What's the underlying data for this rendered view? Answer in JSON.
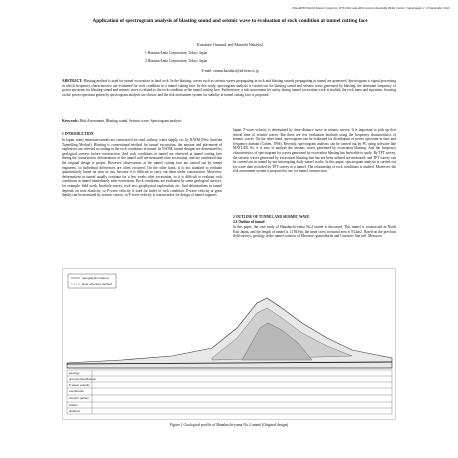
{
  "header": {
    "running": "ITA-AITES World Tunnel Congress, WTC2022 and 46th General Assembly Bella Center, Copenhagen 2 - 8 September 2022",
    "title": "Application of spectrogram analysis of blasting sound and seismic wave to evaluation of rock condition at tunnel cutting face",
    "authors": "Kazuhiro Onuma1 and Masashi Nakaya2",
    "affiliations": [
      "1 Hazama Ando Corporation, Tokyo, Japan",
      "2 Hazama Ando Corporation, Tokyo, Japan"
    ],
    "email": "E-mail: onuma.kazuhiro@ad-hzm.co.jp"
  },
  "abstract": {
    "label": "ABSTRACT:",
    "text": "Blasting method is used for tunnel excavation in hard rock. In the blasting, waves such as seismic waves propagating in rock and blasting sounds propagating in tunnel are generated. Spectrogram is signal processing in which frequency characteristics are evaluated for rock condition in a tunnel cutting face. In this study, spectrogram analysis is carried out for blasting sound and seismic wave generated by blasting, the dominant frequency of power spectrum for blasting sound and seismic wave is related to the rock condition at the tunnel cutting face. Furthermore, a risk assessment for safety during tunnel excavation work is studied, the rock mass and equations focusing on the power spectrum gotten by spectrogram analysis are shown, and the risk assessment system for stability at tunnel cutting face is proposed."
  },
  "keywords": {
    "label": "Keywords:",
    "text": "Risk Assessment, Blasting sound, Seismic wave, Spectrogram analysis"
  },
  "sections": [
    {
      "heading": "1 INTRODUCTION",
      "text": "In Japan, many mountain tunnels are constructed for road, railway, water supply, etc. by NATM (New Austrian Tunnelling Method). Blasting is conventional method for tunnel excavation, the amount and placement of explosives are selected according to the rock conditions in tunnel. In NATM, tunnel designs are determined by geological surveys before construction. And rock conditions in tunnel are observed at tunnel cutting face during the construction, deformations of the tunnel wall are measured after excavation, and are confirmed that the original design is proper. However, observations at the tunnel cutting face are carried out by tunnel engineers, so individual differences are often occurred. On the other hand, it is not standard to evaluate quantitatively based on tests in situ, because it is difficult to carry out them under construction. Moreover, deformations in tunnel usually continue for a few weeks after excavation, so it is difficult to evaluate rock conditions in tunnel immediately after excavation. Rock conditions are evaluated by some geological surveys, for example, field work, borehole survey, rock test, geophysical exploration, etc. And deformations in tunnel depends on rock elasticity, so P-wave velocity is used for index of rock condition. P-wave velocity at great depths can be measured by seismic survey, so P-wave velocity is a main index for design of tunnel supports."
    },
    {
      "text": "Japan. P-wave velocity is determined by time-distance curve in seismic survey. It is important to pick up first arrival time of seismic waves. But there are few evaluation methods using the frequency characteristics of seismic waves. On the other hand, spectrogram can be evaluated for distribution of power spectrum in time and frequency domain (Cohen, 1994). Recently, spectrogram analysis can be carried out by PC using software like MATLAB. So, it is easy to analyze the seismic waves generated by excavation blasting. And the frequency characteristics of spectrogram for waves generated by excavation blasting has been able to study. By TFT survey, the seismic waves generated by excavation blasting that has not been utilized are measured, and TFT survey can be carried out in tunnel by not interrupting daily tunnel works. In this paper, spectrogram analysis is carried out for wave data recorded by TFT survey in a tunnel. The relationship of rock conditions is studied. Moreover, the risk assessment system is proposed to use for tunnel construction."
    },
    {
      "heading": "2 OUTLINE OF TUNNEL AND SEISMIC WAVE",
      "subheading": "2.1 Outline of tunnel",
      "text": "In this paper, the case study of Hanabuchi-yama No.2 tunnel is discussed. This tunnel is constructed in North East Japan, and the length of tunnel is 1,194.0m, the inner cross sectional area is 93.2m2. Based on the previous field surveys, geology in the tunnel consists of Mesozoic granodiorite and Cenozoic fine tuff. Mesozoic"
    }
  ],
  "figure": {
    "legend": [
      "topographic method",
      "layer structure method"
    ],
    "rows": [
      "geology",
      "ground classification",
      "P-wave velocity",
      "overburden",
      "support pattern",
      "station",
      "distance"
    ],
    "caption": "Figure 1 Geological profile of Hanabuchi-yama No.2 tunnel (Original design)"
  }
}
